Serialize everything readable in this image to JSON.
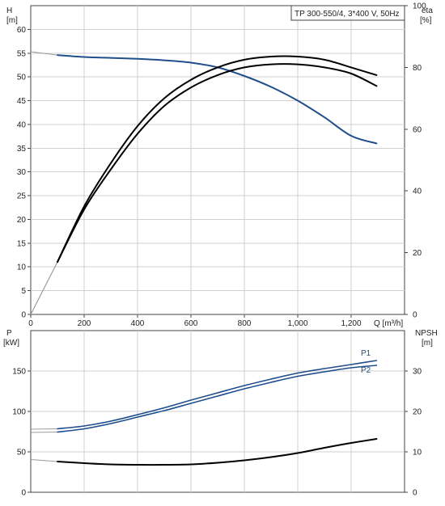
{
  "chart_data": [
    {
      "type": "line",
      "title": "TP 300-550/4, 3*400 V, 50Hz",
      "ylabel": "H",
      "yunit": "[m]",
      "y2label": "eta",
      "y2unit": "[%]",
      "xlabel": "Q [m³/h]",
      "xlim": [
        0,
        1400
      ],
      "ylim": [
        0,
        65
      ],
      "y2lim": [
        0,
        100
      ],
      "xticks": [
        "0",
        "200",
        "400",
        "600",
        "800",
        "1,000",
        "1,200"
      ],
      "yticks": [
        "0",
        "5",
        "10",
        "15",
        "20",
        "25",
        "30",
        "35",
        "40",
        "45",
        "50",
        "55",
        "60"
      ],
      "y2ticks": [
        "0",
        "20",
        "40",
        "60",
        "80",
        "100"
      ],
      "grid": true,
      "series": [
        {
          "axis": "left",
          "color": "#1f4e8c",
          "x": [
            0,
            100,
            200,
            300,
            400,
            500,
            600,
            700,
            800,
            900,
            1000,
            1100,
            1200,
            1295
          ],
          "y": [
            55.3,
            54.6,
            54.2,
            54.0,
            53.8,
            53.5,
            53.0,
            52.0,
            50.2,
            47.9,
            45.0,
            41.5,
            37.6,
            36.0
          ]
        },
        {
          "axis": "right",
          "color": "#000000",
          "x": [
            0,
            100,
            200,
            300,
            400,
            500,
            600,
            700,
            800,
            900,
            1000,
            1100,
            1200,
            1295
          ],
          "y": [
            0,
            17,
            35,
            49,
            61,
            70,
            76,
            80,
            82.5,
            83.5,
            83.5,
            82.5,
            80,
            77.5
          ]
        },
        {
          "axis": "right",
          "color": "#000000",
          "x": [
            0,
            100,
            200,
            300,
            400,
            500,
            600,
            700,
            800,
            900,
            1000,
            1100,
            1200,
            1295
          ],
          "y": [
            0,
            17,
            34,
            47,
            58.5,
            67.5,
            73.5,
            77.5,
            80,
            81,
            81,
            80,
            78,
            74
          ]
        }
      ]
    },
    {
      "type": "line",
      "ylabel": "P",
      "yunit": "[kW]",
      "y2label": "NPSH",
      "y2unit": "[m]",
      "xlim": [
        0,
        1400
      ],
      "ylim": [
        0,
        200
      ],
      "y2lim": [
        0,
        40
      ],
      "yticks": [
        "0",
        "50",
        "100",
        "150"
      ],
      "y2ticks": [
        "0",
        "10",
        "20",
        "30"
      ],
      "grid": true,
      "series": [
        {
          "name": "P1",
          "axis": "left",
          "color": "#1f4e8c",
          "x": [
            0,
            100,
            200,
            300,
            400,
            500,
            600,
            700,
            800,
            900,
            1000,
            1100,
            1200,
            1295
          ],
          "y": [
            78,
            78.5,
            82,
            88,
            96,
            104.5,
            114,
            123,
            132,
            140,
            147.5,
            153,
            158,
            163
          ]
        },
        {
          "name": "P2",
          "axis": "left",
          "color": "#1f4e8c",
          "x": [
            0,
            100,
            200,
            300,
            400,
            500,
            600,
            700,
            800,
            900,
            1000,
            1100,
            1200,
            1295
          ],
          "y": [
            74,
            74.5,
            78.5,
            85,
            93,
            101,
            110,
            119,
            128,
            136,
            143.5,
            149,
            154,
            157
          ]
        },
        {
          "axis": "right",
          "color": "#000000",
          "x": [
            0,
            100,
            200,
            300,
            400,
            500,
            600,
            700,
            800,
            900,
            1000,
            1100,
            1200,
            1295
          ],
          "y": [
            8.1,
            7.6,
            7.2,
            6.9,
            6.8,
            6.8,
            6.9,
            7.3,
            7.9,
            8.7,
            9.7,
            11.0,
            12.2,
            13.2
          ]
        }
      ]
    }
  ]
}
